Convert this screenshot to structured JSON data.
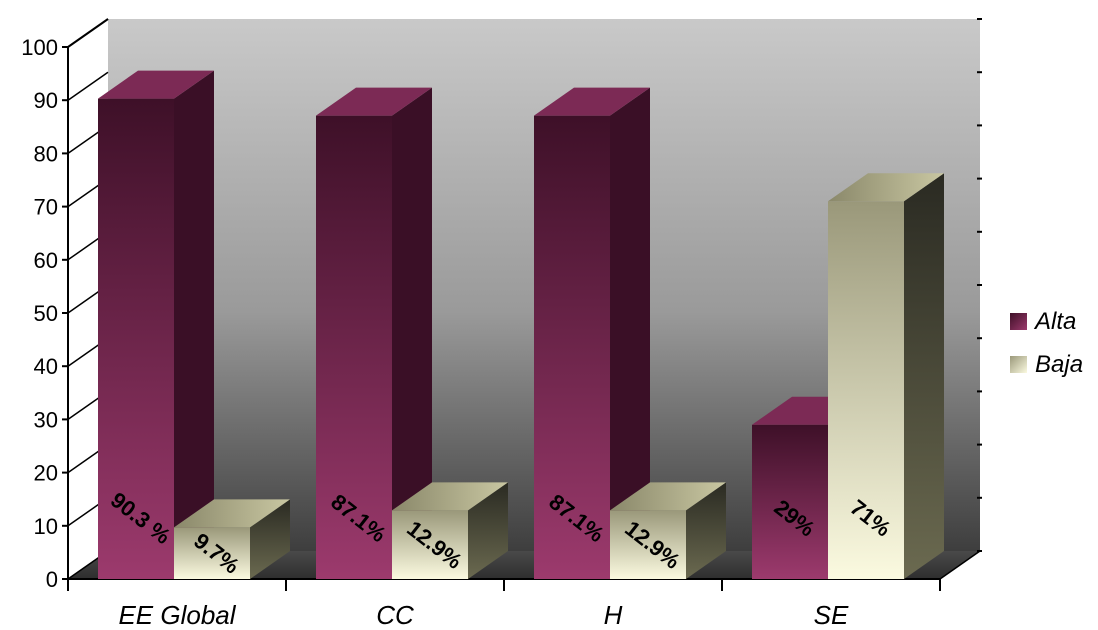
{
  "chart_data": {
    "type": "bar",
    "categories": [
      "EE Global",
      "CC",
      "H",
      "SE"
    ],
    "series": [
      {
        "name": "Alta",
        "values": [
          90.3,
          87.1,
          87.1,
          29
        ],
        "labels": [
          "90.3 %",
          "87.1%",
          "87.1%",
          "29%"
        ]
      },
      {
        "name": "Baja",
        "values": [
          9.7,
          12.9,
          12.9,
          71
        ],
        "labels": [
          "9.7%",
          "12.9%",
          "12.9%",
          "71%"
        ]
      }
    ],
    "title": "",
    "xlabel": "",
    "ylabel": "",
    "ylim": [
      0,
      100
    ],
    "yticks": [
      0,
      10,
      20,
      30,
      40,
      50,
      60,
      70,
      80,
      90,
      100
    ],
    "legend_position": "right",
    "grid": false,
    "colors": {
      "Alta": "#7a2a55",
      "Baja": "#e8e6b8"
    },
    "style": "3d-clustered"
  }
}
